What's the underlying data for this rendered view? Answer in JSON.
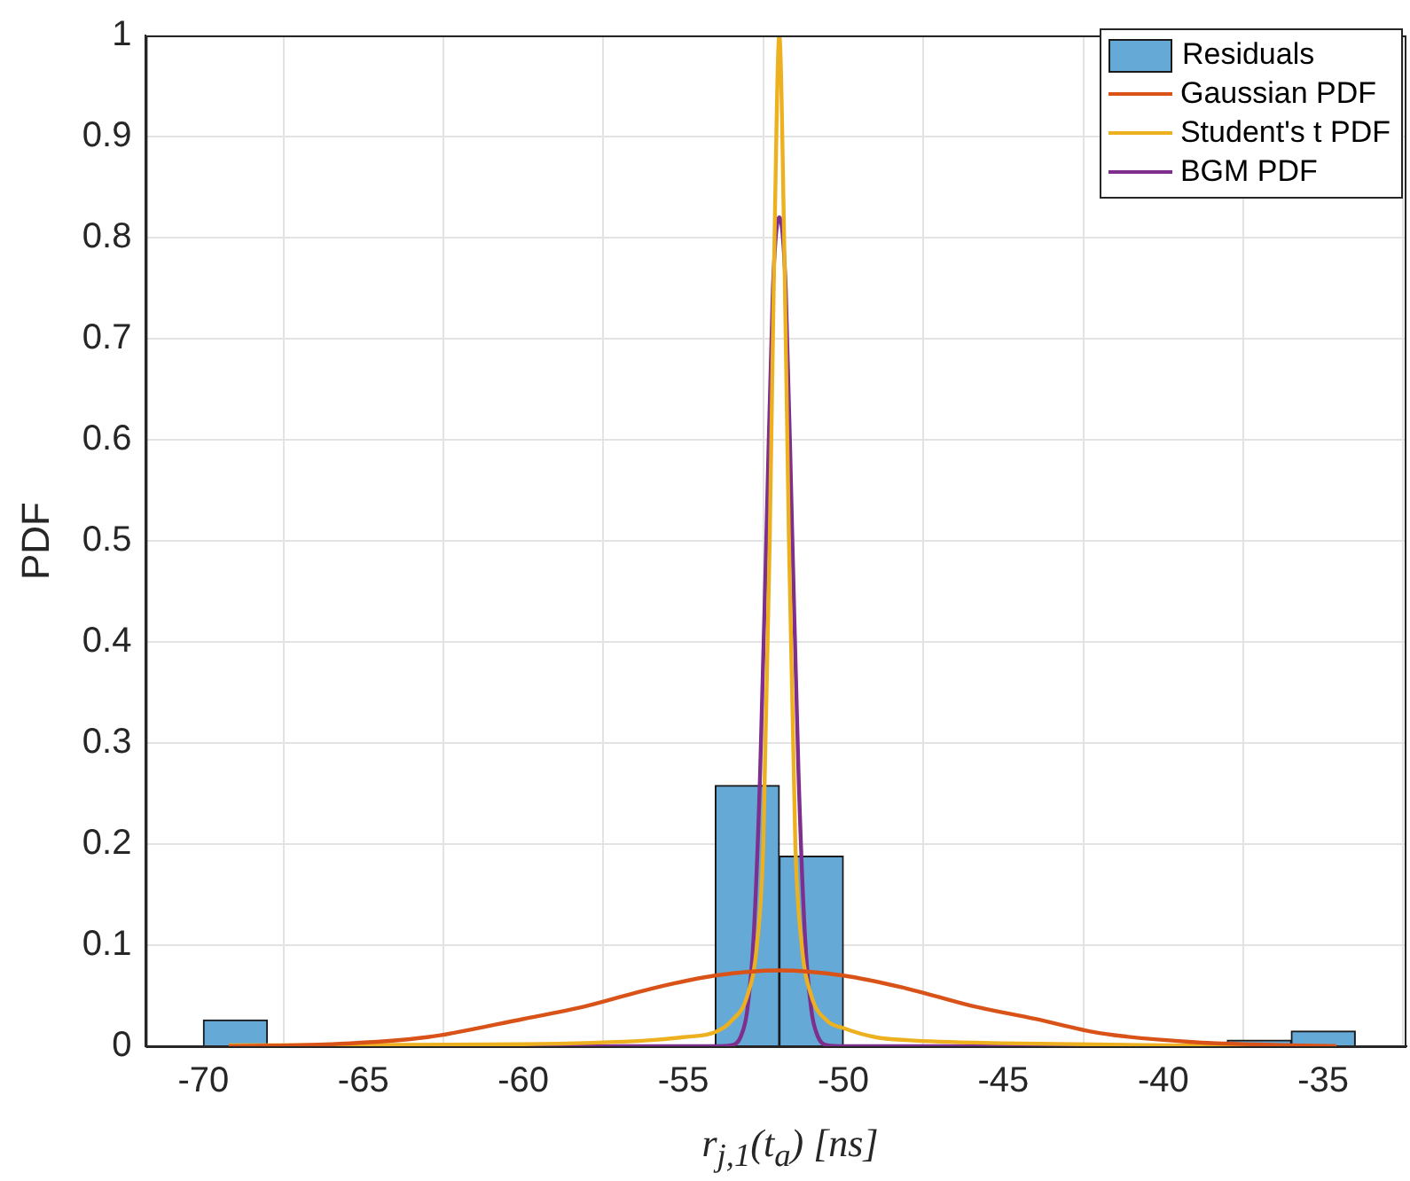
{
  "chart_data": {
    "type": "histogram",
    "xlabel": "r$_{j,1}$(t$_{a}$) [ns]",
    "ylabel": "PDF",
    "xlim": [
      -71.8,
      -32.4
    ],
    "xticks": [
      -70,
      -65,
      -60,
      -55,
      -50,
      -45,
      -40,
      -35
    ],
    "ylim": [
      0,
      1
    ],
    "yticks": [
      0,
      0.1,
      0.2,
      0.3,
      0.4,
      0.5,
      0.6,
      0.7,
      0.8,
      0.9,
      1
    ],
    "grid": true,
    "legend": "top right",
    "series": [
      {
        "name": "Residuals",
        "color": "#65a9d7",
        "bins": [
          -70,
          -68,
          -66,
          -64,
          -62,
          -60,
          -58,
          -56,
          -54,
          -52,
          -50,
          -48,
          -46,
          -44,
          -42,
          -40,
          -38,
          -36,
          -34
        ],
        "values": [
          0.026,
          0,
          0,
          0,
          0,
          0,
          0,
          0,
          0.258,
          0.188,
          0,
          0,
          0,
          0,
          0,
          0,
          0.006,
          0.015
        ]
      },
      {
        "name": "Gaussian PDF",
        "type": "line",
        "color": "#d95319",
        "x": [
          -69.2,
          -66,
          -63,
          -60,
          -58,
          -56,
          -54,
          -52,
          -50,
          -48,
          -46,
          -44,
          -42,
          -39,
          -36,
          -34.6
        ],
        "values": [
          0,
          0.002,
          0.009,
          0.027,
          0.04,
          0.057,
          0.07,
          0.075,
          0.07,
          0.057,
          0.04,
          0.027,
          0.013,
          0.004,
          0.001,
          0
        ]
      },
      {
        "name": "Student's t PDF",
        "type": "line",
        "color": "#edb120",
        "x": [
          -69.2,
          -60,
          -56,
          -55,
          -54,
          -53.5,
          -53,
          -52.7,
          -52.5,
          -52.3,
          -52.15,
          -52,
          -51.85,
          -51.7,
          -51.5,
          -51.3,
          -51,
          -50.5,
          -50,
          -49,
          -48,
          -45,
          -40,
          -34.6
        ],
        "values": [
          0.001,
          0.002,
          0.006,
          0.009,
          0.014,
          0.025,
          0.05,
          0.1,
          0.2,
          0.5,
          0.8,
          1,
          0.8,
          0.5,
          0.2,
          0.1,
          0.05,
          0.025,
          0.018,
          0.009,
          0.006,
          0.003,
          0.001,
          0
        ]
      },
      {
        "name": "BGM PDF",
        "type": "line",
        "color": "#7e2f8e",
        "x": [
          -69.2,
          -54,
          -53.5,
          -53.2,
          -53,
          -52.8,
          -52.6,
          -52.4,
          -52.2,
          -52,
          -51.8,
          -51.6,
          -51.4,
          -51.2,
          -51,
          -50.8,
          -50.5,
          -50,
          -34.6
        ],
        "values": [
          0,
          0,
          0.001,
          0.01,
          0.036,
          0.11,
          0.27,
          0.51,
          0.75,
          0.82,
          0.75,
          0.51,
          0.27,
          0.11,
          0.036,
          0.01,
          0.001,
          0,
          0
        ]
      }
    ]
  }
}
